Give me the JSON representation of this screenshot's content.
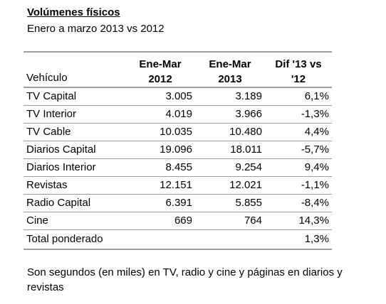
{
  "header": {
    "title": "Volúmenes físicos",
    "subtitle": "Enero a marzo 2013 vs 2012"
  },
  "table": {
    "columns": {
      "vehiculo": "Vehículo",
      "col_2012_line1": "Ene-Mar",
      "col_2012_line2": "2012",
      "col_2013_line1": "Ene-Mar",
      "col_2013_line2": "2013",
      "col_dif_line1": "Dif '13 vs",
      "col_dif_line2": "'12"
    },
    "rows": [
      {
        "vehiculo": "TV Capital",
        "v2012": "3.005",
        "v2013": "3.189",
        "dif": "6,1%"
      },
      {
        "vehiculo": "TV Interior",
        "v2012": "4.019",
        "v2013": "3.966",
        "dif": "-1,3%"
      },
      {
        "vehiculo": "TV Cable",
        "v2012": "10.035",
        "v2013": "10.480",
        "dif": "4,4%"
      },
      {
        "vehiculo": "Diarios Capital",
        "v2012": "19.096",
        "v2013": "18.011",
        "dif": "-5,7%"
      },
      {
        "vehiculo": "Diarios Interior",
        "v2012": "8.455",
        "v2013": "9.254",
        "dif": "9,4%"
      },
      {
        "vehiculo": "Revistas",
        "v2012": "12.151",
        "v2013": "12.021",
        "dif": "-1,1%"
      },
      {
        "vehiculo": "Radio Capital",
        "v2012": "6.391",
        "v2013": "5.855",
        "dif": "-8,4%"
      },
      {
        "vehiculo": "Cine",
        "v2012": "669",
        "v2013": "764",
        "dif": "14,3%"
      }
    ],
    "total": {
      "label": "Total ponderado",
      "dif": "1,3%"
    }
  },
  "footnote": "Son segundos (en miles) en TV, radio y cine y páginas en diarios y revistas"
}
